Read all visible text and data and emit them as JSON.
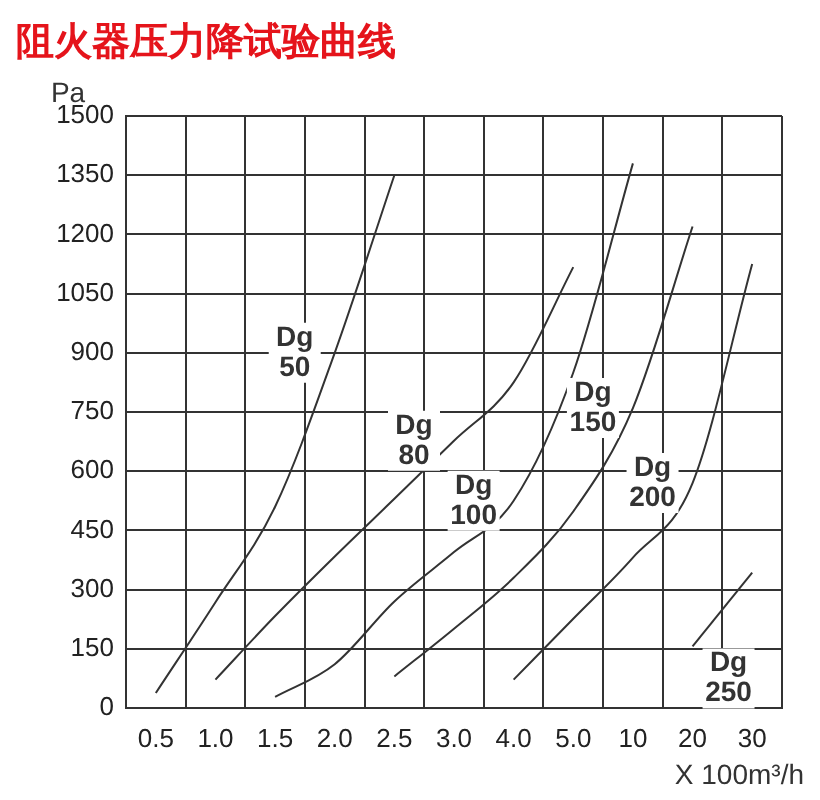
{
  "chart_data": {
    "type": "line",
    "title": "阻火器压力降试验曲线",
    "ylabel": "Pa",
    "xlabel": "X 100m³/h",
    "categories": [
      "0.5",
      "1.0",
      "1.5",
      "2.0",
      "2.5",
      "3.0",
      "4.0",
      "5.0",
      "10",
      "20",
      "30"
    ],
    "series": [
      {
        "name": "Dg 50",
        "color": "#333333",
        "values": [
          38,
          268,
          510,
          900,
          1350,
          null,
          null,
          null,
          null,
          null,
          null
        ]
      },
      {
        "name": "Dg 80",
        "color": "#333333",
        "values": [
          null,
          72,
          233,
          384,
          530,
          677,
          825,
          1117,
          null,
          null,
          null
        ]
      },
      {
        "name": "Dg 100",
        "color": "#333333",
        "values": [
          null,
          null,
          28,
          111,
          270,
          395,
          525,
          850,
          1380,
          null,
          null
        ]
      },
      {
        "name": "Dg 150",
        "color": "#333333",
        "values": [
          null,
          null,
          null,
          null,
          80,
          201,
          330,
          498,
          760,
          1220,
          null
        ]
      },
      {
        "name": "Dg 200",
        "color": "#333333",
        "values": [
          null,
          null,
          null,
          null,
          null,
          null,
          72,
          226,
          381,
          570,
          1125
        ]
      },
      {
        "name": "Dg 250",
        "color": "#333333",
        "values": [
          null,
          null,
          null,
          null,
          null,
          null,
          null,
          null,
          null,
          156,
          343
        ]
      }
    ],
    "ylim": [
      0,
      1500
    ],
    "yticks": [
      0,
      150,
      300,
      450,
      600,
      750,
      900,
      1050,
      1200,
      1350,
      1500
    ],
    "grid": true,
    "legend": false,
    "marker": "none",
    "line_style": "solid"
  }
}
